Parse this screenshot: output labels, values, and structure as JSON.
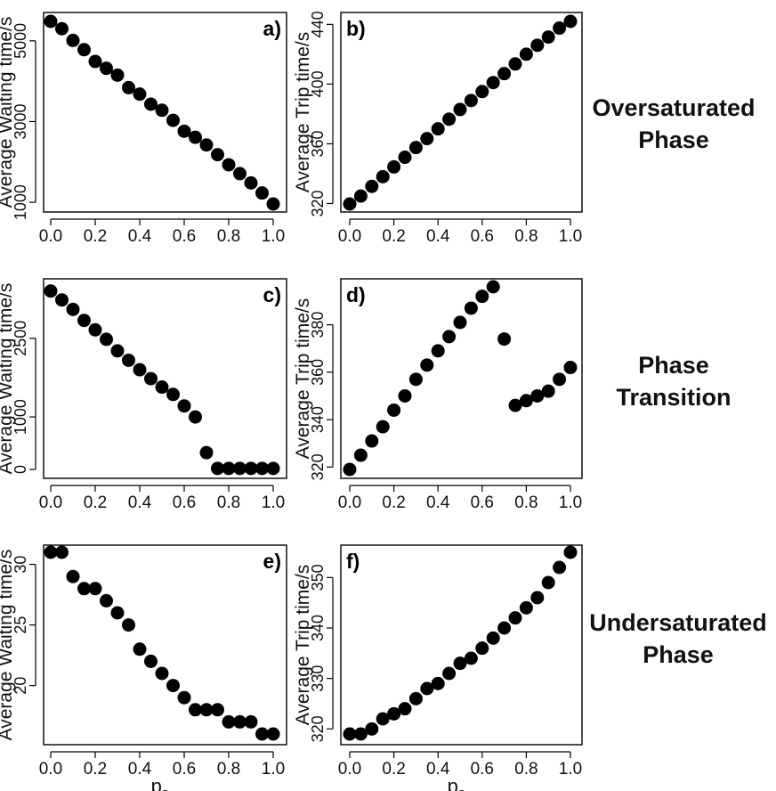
{
  "phases": [
    {
      "line1": "Oversaturated",
      "line2": "Phase"
    },
    {
      "line1": "Phase",
      "line2": "Transition"
    },
    {
      "line1": "Undersaturated",
      "line2": "Phase"
    }
  ],
  "colors": {
    "marker": "#000000",
    "axis": "#000000",
    "background": "#ffffff"
  },
  "chart_data": [
    {
      "id": "a",
      "panel_label": "a)",
      "type": "scatter",
      "xlabel": "",
      "ylabel": "Average Waiting time/s",
      "xlim": [
        0,
        1
      ],
      "ylim": [
        958,
        5482
      ],
      "xticks": [
        0,
        0.2,
        0.4,
        0.6,
        0.8,
        1.0
      ],
      "xtick_labels": [
        "0.0",
        "0.2",
        "0.4",
        "0.6",
        "0.8",
        "1.0"
      ],
      "yticks": [
        1000,
        3000,
        5000
      ],
      "ytick_labels": [
        "1000",
        "3000",
        "5000"
      ],
      "x": [
        0,
        0.05,
        0.1,
        0.15,
        0.2,
        0.25,
        0.3,
        0.35,
        0.4,
        0.45,
        0.5,
        0.55,
        0.6,
        0.65,
        0.7,
        0.75,
        0.8,
        0.85,
        0.9,
        0.95,
        1.0
      ],
      "y": [
        5482,
        5300,
        5010,
        4780,
        4490,
        4320,
        4150,
        3840,
        3680,
        3430,
        3280,
        3030,
        2760,
        2610,
        2420,
        2180,
        1930,
        1710,
        1480,
        1230,
        958
      ]
    },
    {
      "id": "b",
      "panel_label": "b)",
      "type": "scatter",
      "xlabel": "",
      "ylabel": "Average Trip time/s",
      "xlim": [
        0,
        1
      ],
      "ylim": [
        319.7,
        442
      ],
      "xticks": [
        0,
        0.2,
        0.4,
        0.6,
        0.8,
        1.0
      ],
      "xtick_labels": [
        "0.0",
        "0.2",
        "0.4",
        "0.6",
        "0.8",
        "1.0"
      ],
      "yticks": [
        320,
        360,
        400,
        440
      ],
      "ytick_labels": [
        "320",
        "360",
        "400",
        "440"
      ],
      "x": [
        0,
        0.05,
        0.1,
        0.15,
        0.2,
        0.25,
        0.3,
        0.35,
        0.4,
        0.45,
        0.5,
        0.55,
        0.6,
        0.65,
        0.7,
        0.75,
        0.8,
        0.85,
        0.9,
        0.95,
        1.0
      ],
      "y": [
        319.7,
        325,
        331.5,
        338,
        344.5,
        351,
        357.5,
        363.5,
        370,
        376.5,
        383,
        389,
        395,
        401,
        407,
        413.5,
        420,
        426,
        431.5,
        437.5,
        442
      ]
    },
    {
      "id": "c",
      "panel_label": "c)",
      "type": "scatter",
      "xlabel": "",
      "ylabel": "Average Waiting time/s",
      "xlim": [
        0,
        1
      ],
      "ylim": [
        0,
        3480
      ],
      "xticks": [
        0,
        0.2,
        0.4,
        0.6,
        0.8,
        1.0
      ],
      "xtick_labels": [
        "0.0",
        "0.2",
        "0.4",
        "0.6",
        "0.8",
        "1.0"
      ],
      "yticks": [
        0,
        1000,
        2500
      ],
      "ytick_labels": [
        "0",
        "1000",
        "2500"
      ],
      "x": [
        0,
        0.05,
        0.1,
        0.15,
        0.2,
        0.25,
        0.3,
        0.35,
        0.4,
        0.45,
        0.5,
        0.55,
        0.6,
        0.65,
        0.7,
        0.75,
        0.8,
        0.85,
        0.9,
        0.95,
        1.0
      ],
      "y": [
        3400,
        3230,
        3050,
        2840,
        2660,
        2480,
        2260,
        2080,
        1900,
        1730,
        1570,
        1430,
        1210,
        1000,
        320,
        20,
        20,
        20,
        20,
        20,
        20
      ]
    },
    {
      "id": "d",
      "panel_label": "d)",
      "type": "scatter",
      "xlabel": "",
      "ylabel": "Average Trip time/s",
      "xlim": [
        0,
        1
      ],
      "ylim": [
        319,
        396
      ],
      "xticks": [
        0,
        0.2,
        0.4,
        0.6,
        0.8,
        1.0
      ],
      "xtick_labels": [
        "0.0",
        "0.2",
        "0.4",
        "0.6",
        "0.8",
        "1.0"
      ],
      "yticks": [
        320,
        340,
        360,
        380
      ],
      "ytick_labels": [
        "320",
        "340",
        "360",
        "380"
      ],
      "x": [
        0,
        0.05,
        0.1,
        0.15,
        0.2,
        0.25,
        0.3,
        0.35,
        0.4,
        0.45,
        0.5,
        0.55,
        0.6,
        0.65,
        0.7,
        0.75,
        0.8,
        0.85,
        0.9,
        0.95,
        1.0
      ],
      "y": [
        319,
        325,
        331,
        337,
        344,
        350,
        357,
        363,
        369,
        375,
        381,
        387,
        392,
        396,
        374,
        346,
        348,
        350,
        352,
        357,
        362
      ]
    },
    {
      "id": "e",
      "panel_label": "e)",
      "type": "scatter",
      "xlabel": "ps",
      "xlabel_main": "p",
      "xlabel_sub": "s",
      "ylabel": "Average Waiting time/s",
      "xlim": [
        0,
        1
      ],
      "ylim": [
        16,
        31
      ],
      "xticks": [
        0,
        0.2,
        0.4,
        0.6,
        0.8,
        1.0
      ],
      "xtick_labels": [
        "0.0",
        "0.2",
        "0.4",
        "0.6",
        "0.8",
        "1.0"
      ],
      "yticks": [
        20,
        25,
        30
      ],
      "ytick_labels": [
        "20",
        "25",
        "30"
      ],
      "x": [
        0,
        0.05,
        0.1,
        0.15,
        0.2,
        0.25,
        0.3,
        0.35,
        0.4,
        0.45,
        0.5,
        0.55,
        0.6,
        0.65,
        0.7,
        0.75,
        0.8,
        0.85,
        0.9,
        0.95,
        1.0
      ],
      "y": [
        31,
        31,
        29,
        28,
        28,
        27,
        26,
        25,
        23,
        22,
        21,
        20,
        19,
        18,
        18,
        18,
        17,
        17,
        17,
        16,
        16
      ]
    },
    {
      "id": "f",
      "panel_label": "f)",
      "type": "scatter",
      "xlabel": "ps",
      "xlabel_main": "p",
      "xlabel_sub": "s",
      "ylabel": "Average Trip time/s",
      "xlim": [
        0,
        1
      ],
      "ylim": [
        319,
        355
      ],
      "xticks": [
        0,
        0.2,
        0.4,
        0.6,
        0.8,
        1.0
      ],
      "xtick_labels": [
        "0.0",
        "0.2",
        "0.4",
        "0.6",
        "0.8",
        "1.0"
      ],
      "yticks": [
        320,
        330,
        340,
        350
      ],
      "ytick_labels": [
        "320",
        "330",
        "340",
        "350"
      ],
      "x": [
        0,
        0.05,
        0.1,
        0.15,
        0.2,
        0.25,
        0.3,
        0.35,
        0.4,
        0.45,
        0.5,
        0.55,
        0.6,
        0.65,
        0.7,
        0.75,
        0.8,
        0.85,
        0.9,
        0.95,
        1.0
      ],
      "y": [
        319,
        319,
        320,
        322,
        323,
        324,
        326,
        328,
        329,
        331,
        333,
        334,
        336,
        338,
        340,
        342,
        344,
        346,
        349,
        352,
        355
      ]
    }
  ]
}
